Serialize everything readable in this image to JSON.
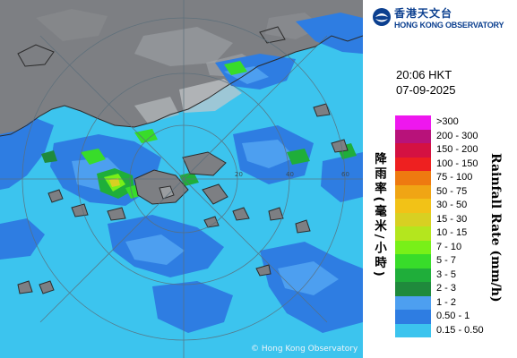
{
  "header": {
    "org_name_cn": "香港天文台",
    "org_name_en": "HONG KONG OBSERVATORY"
  },
  "timestamp": {
    "time": "20:06 HKT",
    "date": "07-09-2025"
  },
  "legend": {
    "unit_en": "Rainfall Rate (mm/h)",
    "unit_cn": "降雨率(毫米/小時)",
    "items": [
      {
        "label": ">300",
        "color": "#ee17ee"
      },
      {
        "label": "200 - 300",
        "color": "#b8127a"
      },
      {
        "label": "150 - 200",
        "color": "#d41142"
      },
      {
        "label": "100 - 150",
        "color": "#ee2020"
      },
      {
        "label": "75 - 100",
        "color": "#ee7a10"
      },
      {
        "label": "50 - 75",
        "color": "#f0a514"
      },
      {
        "label": "30 - 50",
        "color": "#f2c217"
      },
      {
        "label": "15 - 30",
        "color": "#d8d022"
      },
      {
        "label": "10 - 15",
        "color": "#b4e61e"
      },
      {
        "label": "7 - 10",
        "color": "#78f018"
      },
      {
        "label": "5 - 7",
        "color": "#38dc2a"
      },
      {
        "label": "3 - 5",
        "color": "#1fae3a"
      },
      {
        "label": "2 - 3",
        "color": "#1f8a3c"
      },
      {
        "label": "1 - 2",
        "color": "#4d9ff0"
      },
      {
        "label": "0.50 - 1",
        "color": "#2e7de2"
      },
      {
        "label": "0.15 - 0.50",
        "color": "#3cc4ee"
      }
    ]
  },
  "map": {
    "copyright": "© Hong Kong Observatory",
    "range_ring_labels": [
      "20",
      "40",
      "60"
    ]
  }
}
